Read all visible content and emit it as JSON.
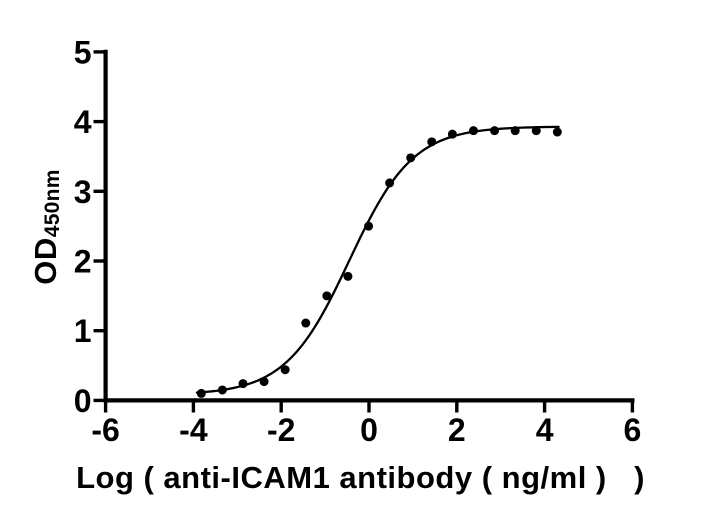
{
  "figure": {
    "background_color": "#ffffff",
    "ink_color": "#000000"
  },
  "chart_data": {
    "type": "scatter",
    "title": "",
    "xlabel": "Log ( anti-ICAM1 antibody ( ng/ml )   )",
    "ylabel_base": "OD",
    "ylabel_subscript": "450nm",
    "xlim": [
      -6,
      6
    ],
    "ylim": [
      0,
      5
    ],
    "x_ticks": [
      -6,
      -4,
      -2,
      0,
      2,
      4,
      6
    ],
    "y_ticks": [
      0,
      1,
      2,
      3,
      4,
      5
    ],
    "grid": false,
    "legend_position": "none",
    "marker": {
      "shape": "circle",
      "color": "#000000",
      "radius_px": 4.5
    },
    "series": [
      {
        "x": [
          -3.82,
          -3.34,
          -2.87,
          -2.39,
          -1.91,
          -1.44,
          -0.96,
          -0.48,
          -0.01,
          0.47,
          0.95,
          1.43,
          1.9,
          2.38,
          2.86,
          3.33,
          3.81,
          4.29
        ],
        "y": [
          0.1,
          0.15,
          0.24,
          0.27,
          0.44,
          1.11,
          1.5,
          1.78,
          2.5,
          3.12,
          3.48,
          3.71,
          3.82,
          3.87,
          3.87,
          3.87,
          3.87,
          3.85
        ]
      }
    ],
    "fit_curve": {
      "model": "four_parameter_logistic",
      "bottom": 0.08,
      "top": 3.93,
      "logEC50": -0.45,
      "hill_slope": 0.6,
      "x_start": -3.92,
      "x_end": 4.32,
      "color": "#000000"
    }
  }
}
